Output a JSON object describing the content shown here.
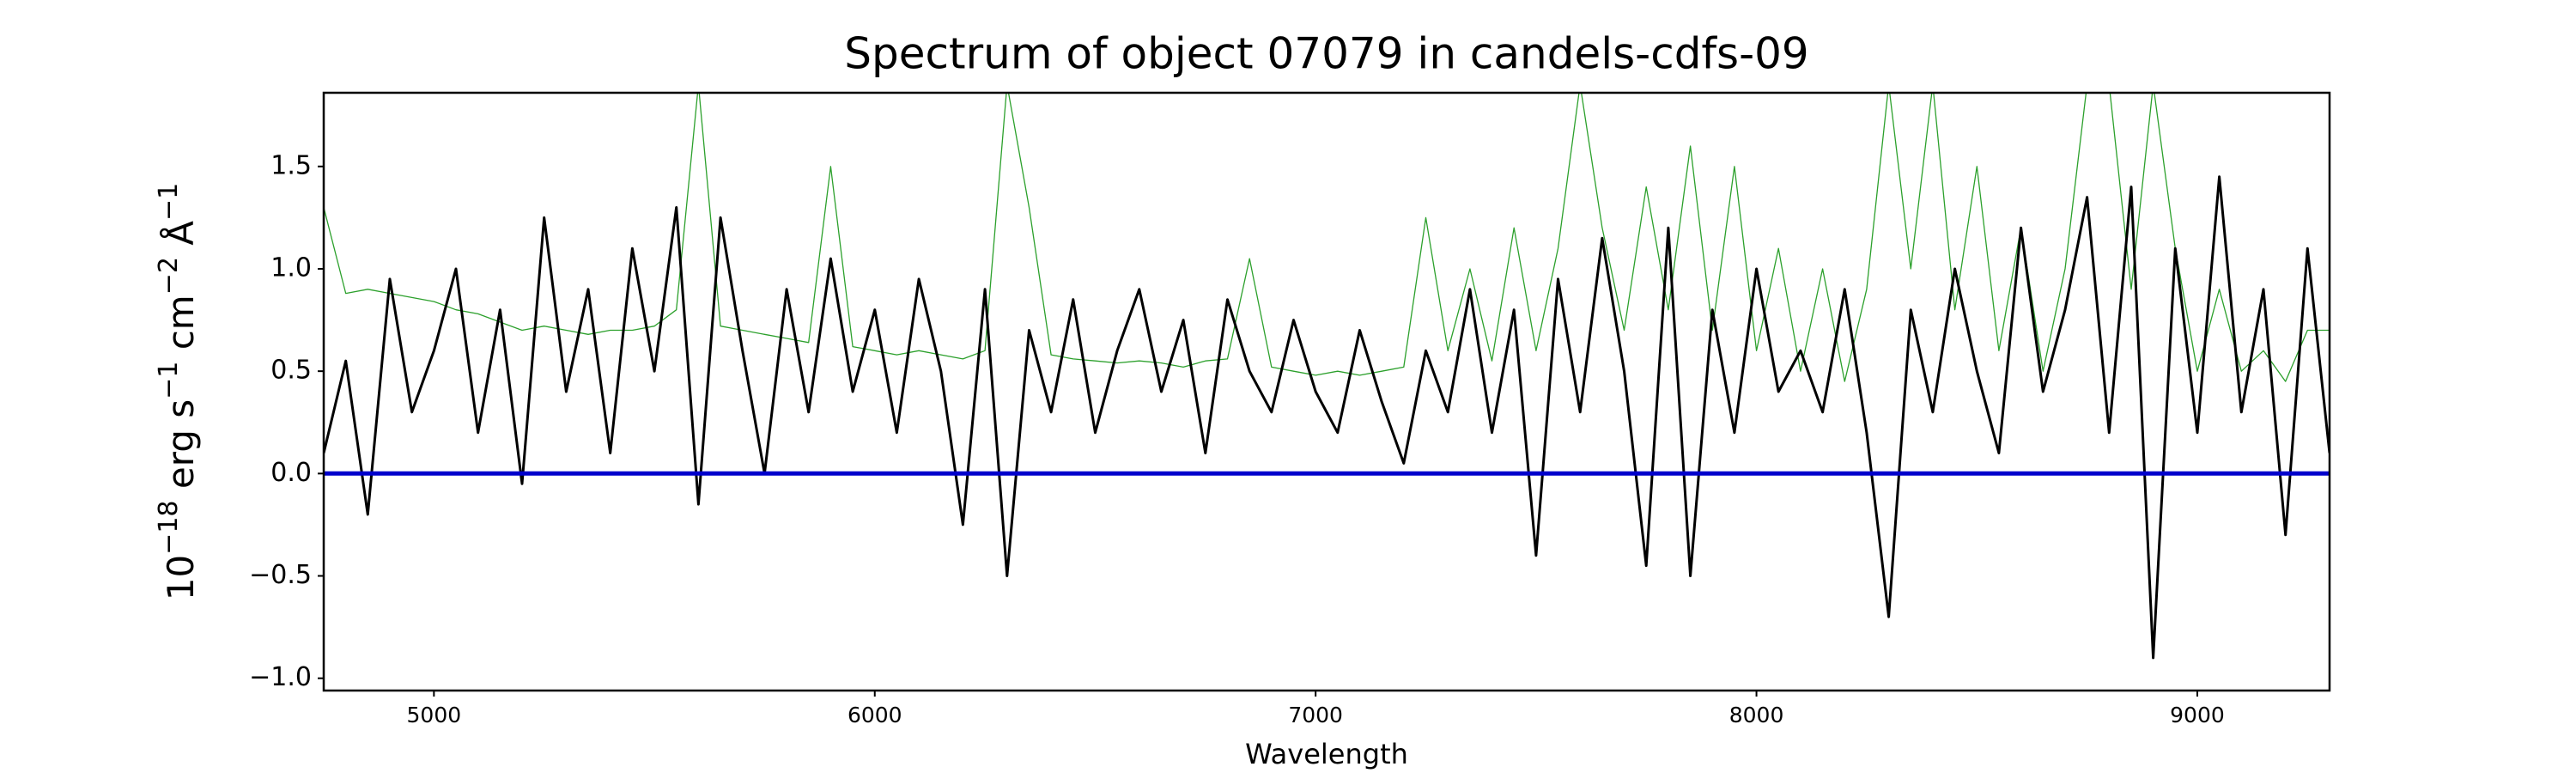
{
  "chart_data": {
    "type": "line",
    "title": "Spectrum of object 07079 in candels-cdfs-09",
    "xlabel": "Wavelength",
    "ylabel": [
      "10",
      "−18",
      " erg s",
      "−1",
      " cm",
      "−2",
      " Å",
      "−1"
    ],
    "xlim": [
      4750,
      9300
    ],
    "ylim": [
      -1.06,
      1.86
    ],
    "xticks": [
      5000,
      6000,
      7000,
      8000,
      9000
    ],
    "yticks": [
      {
        "value": -1.0,
        "label": "−1.0"
      },
      {
        "value": -0.5,
        "label": "−0.5"
      },
      {
        "value": 0.0,
        "label": "0.0"
      },
      {
        "value": 0.5,
        "label": "0.5"
      },
      {
        "value": 1.0,
        "label": "1.0"
      },
      {
        "value": 1.5,
        "label": "1.5"
      }
    ],
    "series": [
      {
        "color": "#2ca02c",
        "x": [
          4750,
          4800,
          4850,
          4900,
          4950,
          5000,
          5050,
          5100,
          5150,
          5200,
          5250,
          5300,
          5350,
          5400,
          5450,
          5500,
          5550,
          5600,
          5650,
          5700,
          5750,
          5800,
          5850,
          5900,
          5950,
          6000,
          6050,
          6100,
          6150,
          6200,
          6250,
          6300,
          6350,
          6400,
          6450,
          6500,
          6550,
          6600,
          6650,
          6700,
          6750,
          6800,
          6850,
          6900,
          6950,
          7000,
          7050,
          7100,
          7150,
          7200,
          7250,
          7300,
          7350,
          7400,
          7450,
          7500,
          7550,
          7600,
          7650,
          7700,
          7750,
          7800,
          7850,
          7900,
          7950,
          8000,
          8050,
          8100,
          8150,
          8200,
          8250,
          8300,
          8350,
          8400,
          8450,
          8500,
          8550,
          8600,
          8650,
          8700,
          8750,
          8800,
          8850,
          8900,
          8950,
          9000,
          9050,
          9100,
          9150,
          9200,
          9250,
          9300
        ],
        "values": [
          1.3,
          0.88,
          0.9,
          0.88,
          0.86,
          0.84,
          0.8,
          0.78,
          0.74,
          0.7,
          0.72,
          0.7,
          0.68,
          0.7,
          0.7,
          0.72,
          0.8,
          1.9,
          0.72,
          0.7,
          0.68,
          0.66,
          0.64,
          1.5,
          0.62,
          0.6,
          0.58,
          0.6,
          0.58,
          0.56,
          0.6,
          1.9,
          1.3,
          0.58,
          0.56,
          0.55,
          0.54,
          0.55,
          0.54,
          0.52,
          0.55,
          0.56,
          1.05,
          0.52,
          0.5,
          0.48,
          0.5,
          0.48,
          0.5,
          0.52,
          1.25,
          0.6,
          1.0,
          0.55,
          1.2,
          0.6,
          1.1,
          1.9,
          1.2,
          0.7,
          1.4,
          0.8,
          1.6,
          0.7,
          1.5,
          0.6,
          1.1,
          0.5,
          1.0,
          0.45,
          0.9,
          1.9,
          1.0,
          1.9,
          0.8,
          1.5,
          0.6,
          1.2,
          0.5,
          1.0,
          1.9,
          1.9,
          0.9,
          1.9,
          1.1,
          0.5,
          0.9,
          0.5,
          0.6,
          0.45,
          0.7,
          0.7
        ]
      },
      {
        "color": "#000000",
        "x": [
          4750,
          4800,
          4850,
          4900,
          4950,
          5000,
          5050,
          5100,
          5150,
          5200,
          5250,
          5300,
          5350,
          5400,
          5450,
          5500,
          5550,
          5600,
          5650,
          5700,
          5750,
          5800,
          5850,
          5900,
          5950,
          6000,
          6050,
          6100,
          6150,
          6200,
          6250,
          6300,
          6350,
          6400,
          6450,
          6500,
          6550,
          6600,
          6650,
          6700,
          6750,
          6800,
          6850,
          6900,
          6950,
          7000,
          7050,
          7100,
          7150,
          7200,
          7250,
          7300,
          7350,
          7400,
          7450,
          7500,
          7550,
          7600,
          7650,
          7700,
          7750,
          7800,
          7850,
          7900,
          7950,
          8000,
          8050,
          8100,
          8150,
          8200,
          8250,
          8300,
          8350,
          8400,
          8450,
          8500,
          8550,
          8600,
          8650,
          8700,
          8750,
          8800,
          8850,
          8900,
          8950,
          9000,
          9050,
          9100,
          9150,
          9200,
          9250,
          9300
        ],
        "values": [
          0.1,
          0.55,
          -0.2,
          0.95,
          0.3,
          0.6,
          1.0,
          0.2,
          0.8,
          -0.05,
          1.25,
          0.4,
          0.9,
          0.1,
          1.1,
          0.5,
          1.3,
          -0.15,
          1.25,
          0.6,
          0.0,
          0.9,
          0.3,
          1.05,
          0.4,
          0.8,
          0.2,
          0.95,
          0.5,
          -0.25,
          0.9,
          -0.5,
          0.7,
          0.3,
          0.85,
          0.2,
          0.6,
          0.9,
          0.4,
          0.75,
          0.1,
          0.85,
          0.5,
          0.3,
          0.75,
          0.4,
          0.2,
          0.7,
          0.35,
          0.05,
          0.6,
          0.3,
          0.9,
          0.2,
          0.8,
          -0.4,
          0.95,
          0.3,
          1.15,
          0.5,
          -0.45,
          1.2,
          -0.5,
          0.8,
          0.2,
          1.0,
          0.4,
          0.6,
          0.3,
          0.9,
          0.2,
          -0.7,
          0.8,
          0.3,
          1.0,
          0.5,
          0.1,
          1.2,
          0.4,
          0.8,
          1.35,
          0.2,
          1.4,
          -0.9,
          1.1,
          0.2,
          1.45,
          0.3,
          0.9,
          -0.3,
          1.1,
          0.1
        ]
      },
      {
        "color": "#0000cc",
        "x": [
          4750,
          9300
        ],
        "values": [
          0,
          0
        ]
      }
    ]
  }
}
